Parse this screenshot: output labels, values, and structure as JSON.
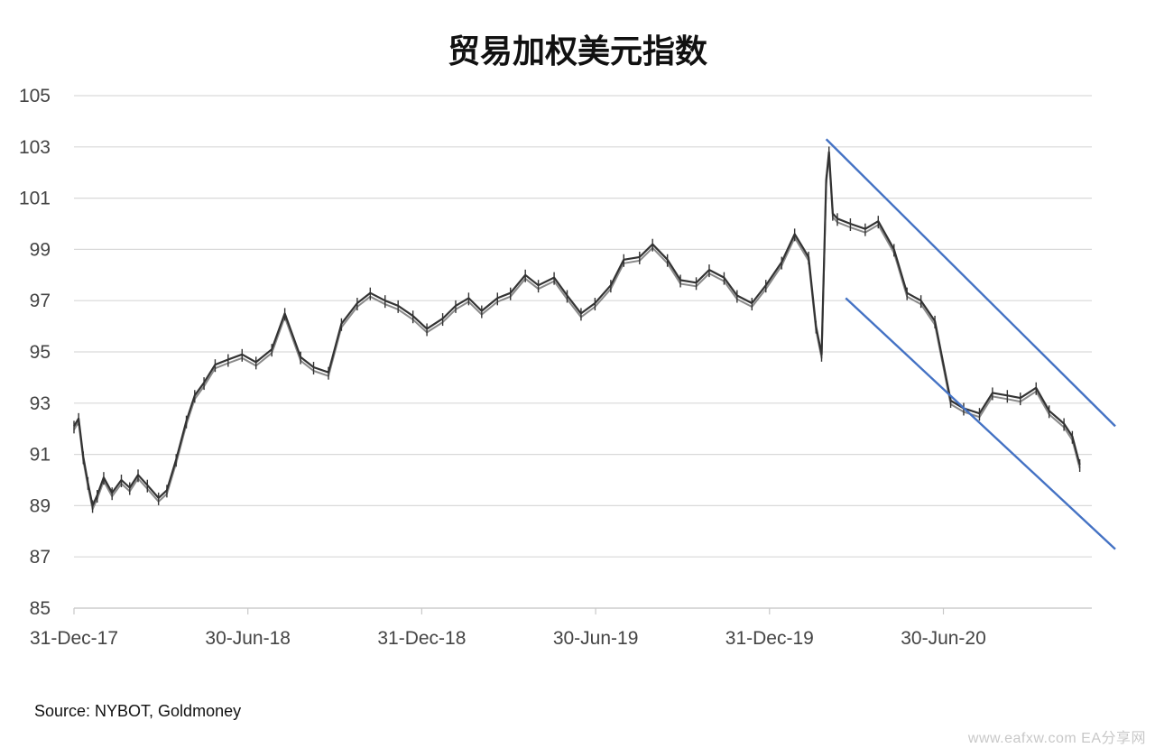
{
  "title": "贸易加权美元指数",
  "source": "Source: NYBOT, Goldmoney",
  "watermark": "www.eafxw.com  EA分享网",
  "chart_data": {
    "type": "line",
    "title": "贸易加权美元指数",
    "xlabel": "",
    "ylabel": "",
    "ylim": [
      85,
      105
    ],
    "y_ticks": [
      85,
      87,
      89,
      91,
      93,
      95,
      97,
      99,
      101,
      103,
      105
    ],
    "x_tick_labels": [
      "31-Dec-17",
      "30-Jun-18",
      "31-Dec-18",
      "30-Jun-19",
      "31-Dec-19",
      "30-Jun-20"
    ],
    "grid": "horizontal",
    "legend": "none",
    "colors": {
      "series": "#333333",
      "series_low": "#8a8a8a",
      "trendline": "#4472c4",
      "grid": "#d9d9d9"
    },
    "series": [
      {
        "x": [
          "2017-12-31",
          "2018-01-05",
          "2018-01-10",
          "2018-01-15",
          "2018-01-20",
          "2018-01-25",
          "2018-02-01",
          "2018-02-10",
          "2018-02-20",
          "2018-03-01",
          "2018-03-10",
          "2018-03-20",
          "2018-04-01",
          "2018-04-10",
          "2018-04-20",
          "2018-05-01",
          "2018-05-10",
          "2018-05-20",
          "2018-06-01",
          "2018-06-15",
          "2018-06-30",
          "2018-07-15",
          "2018-08-01",
          "2018-08-15",
          "2018-09-01",
          "2018-09-15",
          "2018-10-01",
          "2018-10-15",
          "2018-11-01",
          "2018-11-15",
          "2018-12-01",
          "2018-12-15",
          "2018-12-31",
          "2019-01-15",
          "2019-02-01",
          "2019-02-15",
          "2019-03-01",
          "2019-03-15",
          "2019-04-01",
          "2019-04-15",
          "2019-05-01",
          "2019-05-15",
          "2019-06-01",
          "2019-06-15",
          "2019-06-30",
          "2019-07-15",
          "2019-08-01",
          "2019-08-15",
          "2019-09-01",
          "2019-09-15",
          "2019-10-01",
          "2019-10-15",
          "2019-11-01",
          "2019-11-15",
          "2019-12-01",
          "2019-12-15",
          "2019-12-31",
          "2020-01-15",
          "2020-02-01",
          "2020-02-15",
          "2020-03-01",
          "2020-03-09",
          "2020-03-15",
          "2020-03-20",
          "2020-03-23",
          "2020-03-27",
          "2020-04-01",
          "2020-04-15",
          "2020-05-01",
          "2020-05-15",
          "2020-06-01",
          "2020-06-15",
          "2020-06-30",
          "2020-07-15",
          "2020-08-01",
          "2020-08-15",
          "2020-09-01",
          "2020-09-15",
          "2020-10-01",
          "2020-10-15",
          "2020-11-01",
          "2020-11-15",
          "2020-12-01",
          "2020-12-10",
          "2020-12-18"
        ],
        "values": [
          92.1,
          92.4,
          90.9,
          89.9,
          89.0,
          89.4,
          90.1,
          89.5,
          90.0,
          89.7,
          90.2,
          89.8,
          89.3,
          89.6,
          90.8,
          92.3,
          93.3,
          93.8,
          94.5,
          94.7,
          94.9,
          94.6,
          95.1,
          96.5,
          94.8,
          94.4,
          94.2,
          96.1,
          96.9,
          97.3,
          97.0,
          96.8,
          96.4,
          95.9,
          96.3,
          96.8,
          97.1,
          96.6,
          97.1,
          97.3,
          98.0,
          97.6,
          97.9,
          97.2,
          96.5,
          96.9,
          97.6,
          98.6,
          98.7,
          99.2,
          98.6,
          97.8,
          97.7,
          98.2,
          97.9,
          97.2,
          96.9,
          97.6,
          98.5,
          99.6,
          98.7,
          96.0,
          94.9,
          101.7,
          102.8,
          100.4,
          100.2,
          100.0,
          99.8,
          100.1,
          99.0,
          97.3,
          97.0,
          96.2,
          93.1,
          92.8,
          92.6,
          93.4,
          93.3,
          93.2,
          93.6,
          92.7,
          92.2,
          91.7,
          90.6
        ]
      }
    ],
    "annotations": [
      {
        "type": "trendline",
        "from": [
          "2020-03-20",
          103.3
        ],
        "to": [
          "2020-12-31",
          92.1
        ]
      },
      {
        "type": "trendline",
        "from": [
          "2020-04-10",
          97.1
        ],
        "to": [
          "2020-12-31",
          87.3
        ]
      }
    ]
  }
}
